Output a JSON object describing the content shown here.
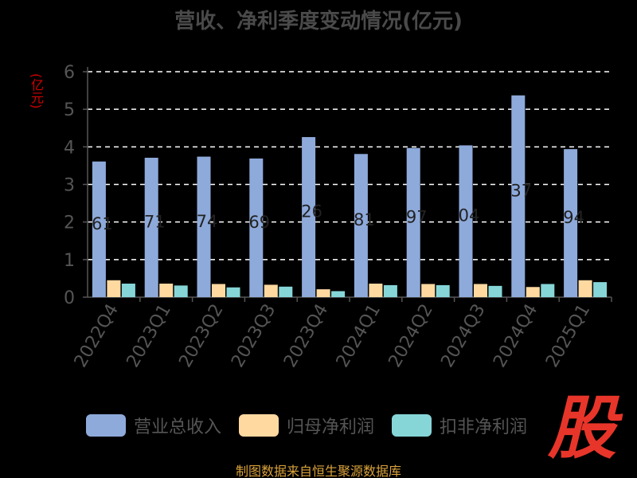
{
  "chart_data": {
    "type": "bar",
    "title": "营收、净利季度变动情况(亿元)",
    "ylabel": "(亿元)",
    "ylim": [
      0,
      6
    ],
    "yticks": [
      0,
      1,
      2,
      3,
      4,
      5,
      6
    ],
    "grid": true,
    "legend_position": "bottom",
    "categories": [
      "2022Q4",
      "2023Q1",
      "2023Q2",
      "2023Q3",
      "2023Q4",
      "2024Q1",
      "2024Q2",
      "2024Q3",
      "2024Q4",
      "2025Q1"
    ],
    "series": [
      {
        "name": "营业总收入",
        "color": "#8eaadb",
        "values": [
          3.61,
          3.71,
          3.74,
          3.69,
          4.26,
          3.81,
          3.97,
          4.04,
          5.37,
          3.94
        ],
        "data_labels": [
          "61",
          "71",
          "74",
          "69",
          "26",
          "81",
          "97",
          "04",
          "37",
          "94"
        ]
      },
      {
        "name": "归母净利润",
        "color": "#ffd9a0",
        "values": [
          0.45,
          0.36,
          0.35,
          0.33,
          0.21,
          0.36,
          0.35,
          0.35,
          0.27,
          0.45
        ]
      },
      {
        "name": "扣非净利润",
        "color": "#86d6d8",
        "values": [
          0.36,
          0.31,
          0.26,
          0.28,
          0.16,
          0.32,
          0.32,
          0.3,
          0.35,
          0.4
        ]
      }
    ]
  },
  "source": "制图数据来自恒生聚源数据库",
  "logo": "股"
}
